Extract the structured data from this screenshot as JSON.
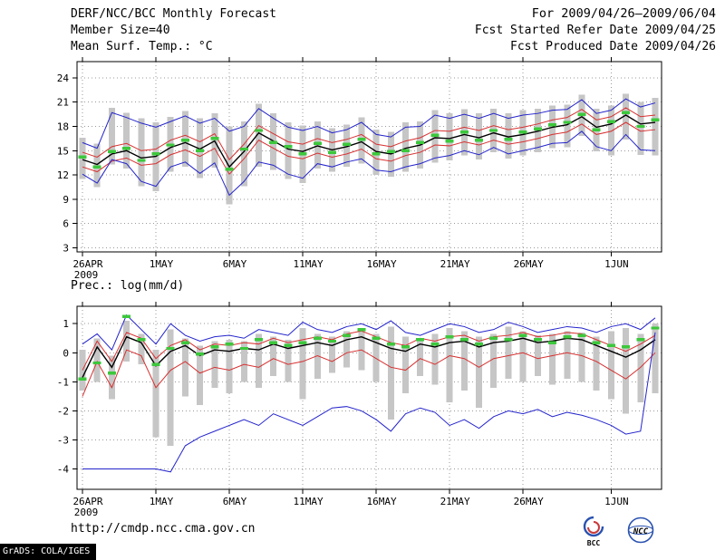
{
  "header": {
    "title": "DERF/NCC/BCC Monthly Forecast",
    "period": "For 2009/04/26–2009/06/04",
    "member_size": "Member Size=40",
    "refer_date": "Fcst Started Refer Date 2009/04/25",
    "produced_date": "Fcst Produced Date 2009/04/26"
  },
  "footer": {
    "url": "http://cmdp.ncc.cma.gov.cn",
    "grads_credit": "GrADS: COLA/IGES",
    "logo_bcc": "BCC",
    "logo_ncc": "NCC",
    "logo_color": "#2a52b0"
  },
  "chart_data": [
    {
      "type": "line",
      "title": "Mean Surf. Temp.: °C",
      "x_sub_label": "2009",
      "xtick_labels": [
        "26APR",
        "1MAY",
        "6MAY",
        "11MAY",
        "16MAY",
        "21MAY",
        "26MAY",
        "1JUN"
      ],
      "xticks": [
        0,
        5,
        10,
        15,
        20,
        25,
        30,
        36
      ],
      "yticks": [
        3,
        6,
        9,
        12,
        15,
        18,
        21,
        24
      ],
      "ylim": [
        3,
        24
      ],
      "ylim_draw": [
        2.5,
        26.0
      ],
      "n_days": 40,
      "grid": true,
      "colors": {
        "min_max": "#2424cc",
        "quartile": "#d83030",
        "mean": "#000000",
        "marker": "#3cc83c",
        "bar": "#c6c6c6",
        "grid": "#9a9a9a"
      },
      "series": [
        {
          "name": "ens-max",
          "color": "#2424cc",
          "width": 1,
          "values": [
            16.0,
            15.3,
            19.7,
            19.1,
            18.4,
            17.9,
            18.6,
            19.3,
            18.4,
            19.0,
            17.4,
            18.0,
            20.2,
            19.0,
            17.9,
            17.5,
            18.0,
            17.2,
            17.6,
            18.5,
            17.0,
            16.7,
            17.9,
            18.0,
            19.4,
            19.0,
            19.5,
            19.0,
            19.6,
            19.0,
            19.4,
            19.6,
            20.0,
            20.1,
            21.3,
            19.6,
            20.0,
            21.4,
            20.4,
            20.9
          ]
        },
        {
          "name": "upper-quartile",
          "color": "#d83030",
          "width": 1,
          "values": [
            14.8,
            14.2,
            15.5,
            15.9,
            15.0,
            15.2,
            16.3,
            16.9,
            16.1,
            17.1,
            13.9,
            15.8,
            18.1,
            17.1,
            16.1,
            15.8,
            16.5,
            16.0,
            16.4,
            17.0,
            15.8,
            15.5,
            16.2,
            16.6,
            17.5,
            17.4,
            17.9,
            17.5,
            18.1,
            17.6,
            17.9,
            18.3,
            18.8,
            19.1,
            20.1,
            18.8,
            19.2,
            20.3,
            19.2,
            19.4
          ]
        },
        {
          "name": "ens-mean",
          "color": "#000000",
          "width": 1.4,
          "values": [
            13.9,
            13.3,
            14.6,
            15.0,
            14.1,
            14.3,
            15.4,
            16.0,
            15.2,
            16.2,
            13.0,
            14.9,
            17.2,
            16.2,
            15.2,
            14.9,
            15.6,
            15.1,
            15.5,
            16.1,
            14.9,
            14.6,
            15.3,
            15.7,
            16.6,
            16.5,
            17.0,
            16.6,
            17.2,
            16.7,
            17.0,
            17.4,
            17.9,
            18.2,
            19.2,
            17.9,
            18.3,
            19.4,
            18.3,
            18.5
          ]
        },
        {
          "name": "lower-quartile",
          "color": "#d83030",
          "width": 1,
          "values": [
            13.0,
            12.4,
            13.7,
            14.1,
            13.2,
            13.4,
            14.5,
            15.1,
            14.3,
            15.3,
            12.1,
            14.0,
            16.3,
            15.3,
            14.3,
            14.0,
            14.7,
            14.2,
            14.6,
            15.2,
            14.0,
            13.7,
            14.4,
            14.8,
            15.7,
            15.6,
            16.1,
            15.7,
            16.3,
            15.8,
            16.1,
            16.5,
            17.0,
            17.3,
            18.3,
            17.0,
            17.4,
            18.5,
            17.4,
            17.6
          ]
        },
        {
          "name": "ens-min",
          "color": "#2424cc",
          "width": 1,
          "values": [
            12.1,
            11.0,
            13.9,
            13.4,
            11.2,
            10.6,
            13.0,
            13.6,
            12.2,
            13.5,
            9.5,
            11.2,
            13.6,
            13.2,
            12.1,
            11.6,
            13.4,
            13.0,
            13.6,
            14.0,
            12.6,
            12.4,
            13.0,
            13.4,
            14.1,
            14.4,
            15.0,
            14.5,
            15.4,
            14.6,
            15.0,
            15.4,
            15.9,
            16.0,
            17.4,
            15.5,
            15.0,
            17.0,
            15.1,
            15.0
          ]
        }
      ],
      "bars": {
        "name": "ensemble-spread-bars",
        "color": "#c6c6c6",
        "low": [
          11.5,
          10.5,
          13.3,
          12.8,
          10.6,
          10.0,
          12.4,
          13.0,
          11.6,
          12.9,
          8.4,
          10.6,
          13.0,
          12.6,
          11.5,
          11.0,
          12.8,
          12.4,
          13.0,
          13.4,
          12.0,
          11.8,
          12.4,
          12.8,
          13.5,
          13.8,
          14.4,
          13.9,
          14.8,
          14.0,
          14.4,
          14.8,
          15.3,
          15.4,
          16.8,
          14.9,
          14.4,
          16.4,
          14.5,
          14.4
        ],
        "high": [
          16.6,
          15.9,
          20.3,
          19.7,
          19.0,
          18.5,
          19.2,
          19.9,
          19.0,
          19.6,
          18.0,
          18.6,
          20.8,
          19.6,
          18.5,
          18.1,
          18.6,
          17.8,
          18.2,
          19.1,
          17.6,
          17.3,
          18.5,
          18.6,
          20.0,
          19.6,
          20.1,
          19.6,
          20.2,
          19.6,
          20.0,
          20.2,
          20.6,
          20.7,
          21.9,
          20.2,
          20.6,
          22.0,
          21.0,
          21.5
        ]
      },
      "markers": {
        "name": "median-markers",
        "color": "#3cc83c",
        "values": [
          14.2,
          13.0,
          14.9,
          15.3,
          13.8,
          14.6,
          15.7,
          16.3,
          15.0,
          16.5,
          12.7,
          15.2,
          17.5,
          16.0,
          15.5,
          14.6,
          15.9,
          14.8,
          15.8,
          16.4,
          14.6,
          14.9,
          15.0,
          16.0,
          16.9,
          16.2,
          17.3,
          16.3,
          17.5,
          16.4,
          17.3,
          17.7,
          18.2,
          18.5,
          19.5,
          17.6,
          18.6,
          19.7,
          18.0,
          18.8
        ]
      }
    },
    {
      "type": "line",
      "title": "Prec.: log(mm/d)",
      "x_sub_label": "2009",
      "xtick_labels": [
        "26APR",
        "1MAY",
        "6MAY",
        "11MAY",
        "16MAY",
        "21MAY",
        "26MAY",
        "1JUN"
      ],
      "xticks": [
        0,
        5,
        10,
        15,
        20,
        25,
        30,
        36
      ],
      "yticks": [
        -4,
        -3,
        -2,
        -1,
        0,
        1
      ],
      "ylim": [
        -4,
        1
      ],
      "ylim_draw": [
        -4.7,
        1.6
      ],
      "n_days": 40,
      "grid": true,
      "colors": {
        "min_max": "#2424cc",
        "quartile": "#d83030",
        "mean": "#000000",
        "marker": "#3cc83c",
        "bar": "#c6c6c6",
        "grid": "#9a9a9a"
      },
      "series": [
        {
          "name": "ens-max",
          "color": "#2424cc",
          "width": 1,
          "values": [
            0.3,
            0.65,
            0.1,
            1.3,
            0.8,
            0.3,
            1.0,
            0.6,
            0.4,
            0.55,
            0.6,
            0.5,
            0.8,
            0.7,
            0.6,
            1.05,
            0.8,
            0.7,
            0.9,
            1.0,
            0.8,
            1.1,
            0.7,
            0.6,
            0.8,
            1.0,
            0.9,
            0.7,
            0.8,
            1.05,
            0.9,
            0.7,
            0.8,
            0.9,
            0.85,
            0.7,
            0.9,
            1.0,
            0.8,
            1.2
          ]
        },
        {
          "name": "upper-quartile",
          "color": "#d83030",
          "width": 1,
          "values": [
            -0.6,
            0.4,
            -0.3,
            0.7,
            0.5,
            -0.2,
            0.25,
            0.45,
            0.1,
            0.3,
            0.25,
            0.35,
            0.3,
            0.5,
            0.35,
            0.45,
            0.55,
            0.45,
            0.65,
            0.75,
            0.55,
            0.35,
            0.25,
            0.5,
            0.4,
            0.55,
            0.6,
            0.4,
            0.55,
            0.6,
            0.7,
            0.55,
            0.6,
            0.7,
            0.65,
            0.45,
            0.25,
            0.05,
            0.3,
            0.6
          ]
        },
        {
          "name": "ens-mean",
          "color": "#000000",
          "width": 1.4,
          "values": [
            -0.85,
            0.2,
            -0.5,
            0.55,
            0.35,
            -0.45,
            0.05,
            0.25,
            -0.1,
            0.1,
            0.05,
            0.15,
            0.1,
            0.3,
            0.15,
            0.25,
            0.35,
            0.25,
            0.45,
            0.55,
            0.35,
            0.15,
            0.05,
            0.3,
            0.2,
            0.35,
            0.4,
            0.2,
            0.35,
            0.4,
            0.5,
            0.35,
            0.4,
            0.5,
            0.45,
            0.25,
            0.05,
            -0.15,
            0.1,
            0.45
          ]
        },
        {
          "name": "lower-quartile",
          "color": "#d83030",
          "width": 1,
          "values": [
            -1.5,
            -0.3,
            -1.2,
            0.1,
            -0.1,
            -1.2,
            -0.6,
            -0.3,
            -0.7,
            -0.5,
            -0.6,
            -0.4,
            -0.5,
            -0.2,
            -0.4,
            -0.3,
            -0.1,
            -0.3,
            0.0,
            0.1,
            -0.2,
            -0.5,
            -0.6,
            -0.2,
            -0.4,
            -0.1,
            -0.2,
            -0.5,
            -0.2,
            -0.1,
            0.0,
            -0.2,
            -0.1,
            0.0,
            -0.1,
            -0.3,
            -0.6,
            -0.9,
            -0.5,
            0.0
          ]
        },
        {
          "name": "ens-min",
          "color": "#2424cc",
          "width": 1,
          "values": [
            -4.0,
            -4.0,
            -4.0,
            -4.0,
            -4.0,
            -4.0,
            -4.1,
            -3.2,
            -2.9,
            -2.7,
            -2.5,
            -2.3,
            -2.5,
            -2.1,
            -2.3,
            -2.5,
            -2.2,
            -1.9,
            -1.85,
            -2.0,
            -2.3,
            -2.7,
            -2.1,
            -1.9,
            -2.05,
            -2.5,
            -2.3,
            -2.6,
            -2.2,
            -2.0,
            -2.1,
            -1.95,
            -2.2,
            -2.05,
            -2.15,
            -2.3,
            -2.5,
            -2.8,
            -2.7,
            0.7
          ]
        }
      ],
      "bars": {
        "name": "ensemble-spread-bars",
        "color": "#c6c6c6",
        "low": [
          -1.3,
          -1.0,
          -1.6,
          -0.3,
          -0.4,
          -2.9,
          -3.2,
          -1.5,
          -1.8,
          -1.2,
          -1.4,
          -1.0,
          -1.2,
          -0.8,
          -1.0,
          -1.6,
          -0.9,
          -0.7,
          -0.5,
          -0.6,
          -1.0,
          -2.3,
          -1.4,
          -0.8,
          -1.1,
          -1.7,
          -1.3,
          -1.9,
          -1.2,
          -0.9,
          -1.0,
          -0.8,
          -1.1,
          -0.9,
          -1.0,
          -1.3,
          -1.6,
          -2.1,
          -1.7,
          -1.4
        ],
        "high": [
          0.1,
          0.5,
          -0.1,
          1.1,
          0.65,
          0.1,
          0.8,
          0.5,
          0.25,
          0.4,
          0.45,
          0.4,
          0.65,
          0.55,
          0.45,
          0.85,
          0.65,
          0.55,
          0.75,
          0.85,
          0.65,
          0.9,
          0.55,
          0.5,
          0.65,
          0.85,
          0.75,
          0.55,
          0.65,
          0.9,
          0.75,
          0.6,
          0.65,
          0.75,
          0.7,
          0.55,
          0.75,
          0.85,
          0.65,
          1.0
        ]
      },
      "markers": {
        "name": "median-markers",
        "color": "#3cc83c",
        "values": [
          -0.9,
          -0.35,
          -0.7,
          1.25,
          0.45,
          -0.4,
          0.15,
          0.35,
          -0.05,
          0.2,
          0.3,
          0.15,
          0.45,
          0.35,
          0.25,
          0.35,
          0.5,
          0.4,
          0.6,
          0.8,
          0.5,
          0.3,
          0.2,
          0.45,
          0.3,
          0.55,
          0.45,
          0.3,
          0.5,
          0.45,
          0.6,
          0.45,
          0.35,
          0.55,
          0.6,
          0.35,
          0.25,
          0.2,
          0.45,
          0.85
        ]
      }
    }
  ]
}
